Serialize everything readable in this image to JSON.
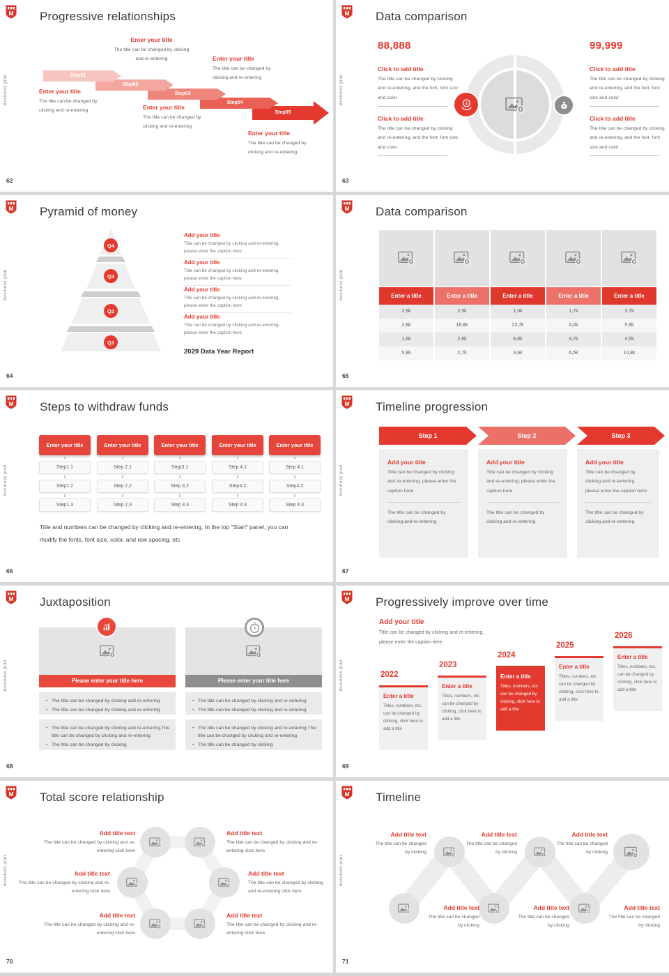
{
  "common": {
    "brand_letter": "M",
    "vertical_label": "Business plan",
    "change_line": "The title can be changed by clicking and re-entering",
    "change_font_line": "The title can be changed by clicking and re-entering, and the font, font size and color",
    "caption_line": "Title can be changed by clicking and re-entering, please enter the caption here",
    "titles_numbers_line": "Titles, numbers, etc. can be changed by clicking, click here to add a title",
    "click_here_line": "The title can be changed by clicking and re-entering click here",
    "clicking_line": "The title can be changed by clicking",
    "accent_red": "#e4392e"
  },
  "slides": {
    "s62": {
      "page": "62",
      "title": "Progressive relationships",
      "block_title": "Enter your title",
      "steps": [
        "Step01",
        "Step02",
        "Step03",
        "Step04",
        "Step05"
      ]
    },
    "s63": {
      "page": "63",
      "title": "Data comparison",
      "num_left": "88,888",
      "num_right": "99,999",
      "block_title": "Click to add title"
    },
    "s64": {
      "page": "64",
      "title": "Pyramid of money",
      "block_title": "Add your title",
      "levels": [
        "Q4",
        "Q3",
        "Q2",
        "Q1"
      ],
      "footer": "2029 Data Year Report"
    },
    "s65": {
      "page": "65",
      "title": "Data comparison",
      "header": "Enter a title",
      "rows": [
        [
          "2,8k",
          "2,5k",
          "1,6k",
          "1,7k",
          "3,7k"
        ],
        [
          "2,8k",
          "16,8k",
          "22,7k",
          "4,0k",
          "5,9k"
        ],
        [
          "1,6k",
          "2,6k",
          "6,8k",
          "4,7k",
          "4,5k"
        ],
        [
          "5,8k",
          "2,7k",
          "3,6k",
          "6,5k",
          "10,8k"
        ]
      ]
    },
    "s66": {
      "page": "66",
      "title": "Steps to withdraw funds",
      "button_label": "Enter your title",
      "cols": [
        [
          "Step1.1",
          "Step1.2",
          "Step1.3"
        ],
        [
          "Step 2.1",
          "Step 2.2",
          "Step 2.3"
        ],
        [
          "Step3.1",
          "Step 3.2",
          "Step 3.3"
        ],
        [
          "Step 4.1",
          "Step4.2",
          "Step 4.3"
        ],
        [
          "Step 4.1",
          "Step4.2",
          "Step 4.3"
        ]
      ],
      "note": "Title and numbers can be changed by clicking and re-entering. In the top \"Start\" panel, you can modify the fonts, font size, color, and row spacing, etc"
    },
    "s67": {
      "page": "67",
      "title": "Timeline progression",
      "card_title": "Add your title",
      "steps": [
        "Step 1",
        "Step 2",
        "Step 3"
      ]
    },
    "s68": {
      "page": "68",
      "title": "Juxtaposition",
      "bar_label": "Please enter your title here",
      "bullet_long": "The title can be changed by clicking and re-entering,The title can be changed by clicking and re-entering"
    },
    "s69": {
      "page": "69",
      "title": "Progressively improve over time",
      "intro_title": "Add your title",
      "card_title": "Enter a title",
      "years": [
        "2022",
        "2023",
        "2024",
        "2025",
        "2026"
      ]
    },
    "s70": {
      "page": "70",
      "title": "Total score relationship",
      "item_title": "Add title text"
    },
    "s71": {
      "page": "71",
      "title": "Timeline",
      "item_title": "Add title text"
    }
  }
}
